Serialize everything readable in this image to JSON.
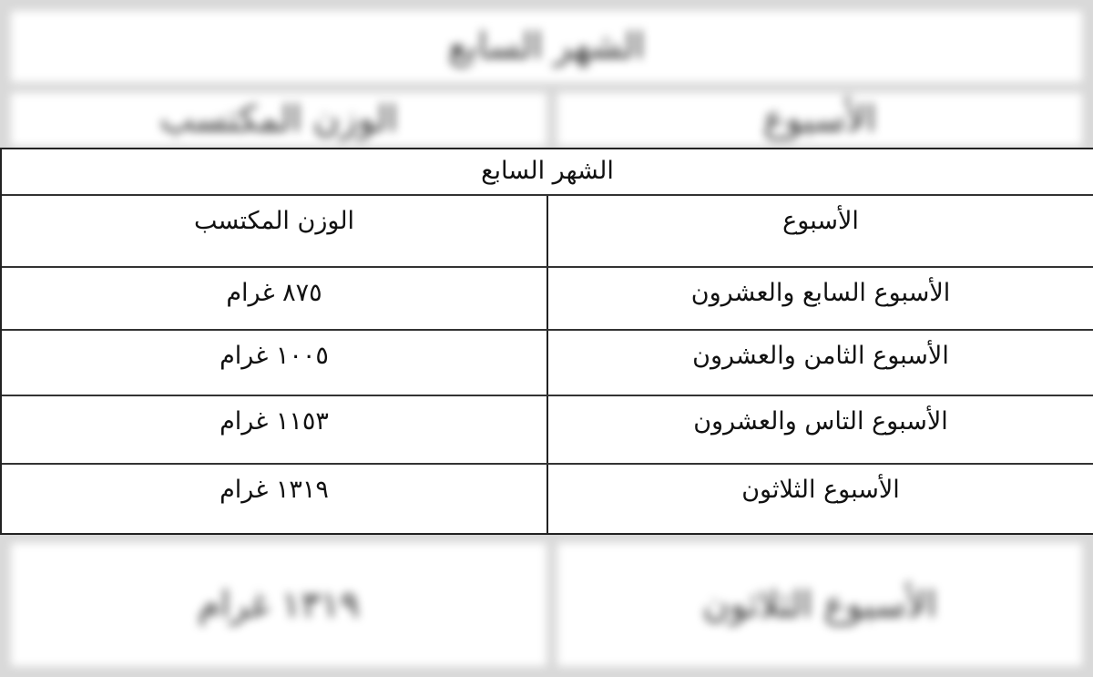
{
  "table": {
    "title": "الشهر السابع",
    "headers": [
      "الأسبوع",
      "الوزن المكتسب"
    ],
    "rows": [
      {
        "week": "الأسبوع السابع والعشرون",
        "weight": "٨٧٥ غرام"
      },
      {
        "week": "الأسبوع الثامن والعشرون",
        "weight": "١٠٠٥ غرام"
      },
      {
        "week": "الأسبوع التاس والعشرون",
        "weight": "١١٥٣ غرام"
      },
      {
        "week": "الأسبوع الثلاثون",
        "weight": "١٣١٩ غرام"
      }
    ]
  }
}
